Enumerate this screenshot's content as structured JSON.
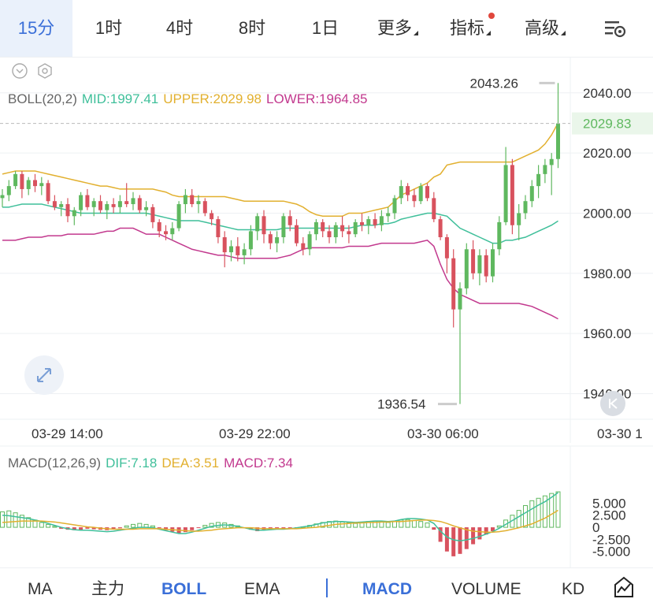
{
  "toolbar": {
    "timeframes": [
      {
        "label": "15分",
        "active": true
      },
      {
        "label": "1时",
        "active": false
      },
      {
        "label": "4时",
        "active": false
      },
      {
        "label": "8时",
        "active": false
      },
      {
        "label": "1日",
        "active": false
      },
      {
        "label": "更多",
        "active": false,
        "dropdown": true
      },
      {
        "label": "指标",
        "active": false,
        "dropdown": true,
        "badge_dot": true
      },
      {
        "label": "高级",
        "active": false,
        "dropdown": true
      }
    ],
    "settings_icon": "chart-settings-icon"
  },
  "overlay_icons": [
    "chevron-down-circle-icon",
    "hexagon-settings-icon"
  ],
  "boll_legend": {
    "label": "BOLL(20,2)",
    "mid": "MID:1997.41",
    "upper": "UPPER:2029.98",
    "lower": "LOWER:1964.85"
  },
  "macd_legend": {
    "label": "MACD(12,26,9)",
    "dif": "DIF:7.18",
    "dea": "DEA:3.51",
    "macd": "MACD:7.34"
  },
  "colors": {
    "up": "#5fb85f",
    "down": "#d8525e",
    "mid": "#3fbf9a",
    "upper": "#e2b02f",
    "lower": "#c2398e",
    "accent": "#3a6fd8",
    "grid": "#eef0f3",
    "label": "#333333"
  },
  "chart_data": [
    {
      "type": "candlestick",
      "indicator": "BOLL(20,2)",
      "price_axis_ticks": [
        "2040.00",
        "2020.00",
        "2000.00",
        "1980.00",
        "1960.00",
        "1940.00"
      ],
      "ylim": [
        1932,
        2052
      ],
      "last_price": "2029.83",
      "marked_high": "2043.26",
      "marked_low": "1936.54",
      "time_labels": [
        "03-29 14:00",
        "03-29 22:00",
        "03-30 06:00",
        "03-30 1"
      ],
      "candles": [
        [
          2005,
          2008,
          2002,
          2006
        ],
        [
          2006,
          2011,
          2004,
          2009
        ],
        [
          2009,
          2014,
          2008,
          2013
        ],
        [
          2013,
          2014,
          2005,
          2008
        ],
        [
          2008,
          2012,
          2006,
          2011
        ],
        [
          2011,
          2013,
          2007,
          2009
        ],
        [
          2009,
          2012,
          2006,
          2010
        ],
        [
          2010,
          2011,
          2003,
          2004
        ],
        [
          2004,
          2006,
          2001,
          2002
        ],
        [
          2002,
          2004,
          1999,
          2003
        ],
        [
          2003,
          2005,
          1997,
          1999
        ],
        [
          1999,
          2002,
          1996,
          2001
        ],
        [
          2001,
          2007,
          1999,
          2006
        ],
        [
          2006,
          2008,
          2001,
          2002
        ],
        [
          2002,
          2005,
          1999,
          2004
        ],
        [
          2004,
          2006,
          2000,
          2001
        ],
        [
          2001,
          2004,
          1998,
          2003
        ],
        [
          2003,
          2005,
          2000,
          2002
        ],
        [
          2002,
          2006,
          2000,
          2004
        ],
        [
          2004,
          2010,
          2002,
          2003
        ],
        [
          2003,
          2007,
          2001,
          2005
        ],
        [
          2005,
          2006,
          2000,
          2001
        ],
        [
          2001,
          2004,
          1999,
          2002
        ],
        [
          2002,
          2003,
          1995,
          1997
        ],
        [
          1997,
          1998,
          1992,
          1994
        ],
        [
          1994,
          1996,
          1991,
          1993
        ],
        [
          1993,
          1997,
          1991,
          1995
        ],
        [
          1995,
          2004,
          1994,
          2003
        ],
        [
          2003,
          2008,
          2000,
          2006
        ],
        [
          2006,
          2008,
          2002,
          2003
        ],
        [
          2003,
          2006,
          2000,
          2004
        ],
        [
          2004,
          2005,
          1999,
          2000
        ],
        [
          2000,
          2001,
          1996,
          1998
        ],
        [
          1998,
          1999,
          1990,
          1992
        ],
        [
          1992,
          1994,
          1982,
          1987
        ],
        [
          1987,
          1991,
          1984,
          1989
        ],
        [
          1989,
          1992,
          1984,
          1986
        ],
        [
          1986,
          1990,
          1983,
          1988
        ],
        [
          1988,
          1996,
          1986,
          1994
        ],
        [
          1994,
          2000,
          1991,
          1999
        ],
        [
          1999,
          2001,
          1990,
          1993
        ],
        [
          1993,
          1994,
          1988,
          1990
        ],
        [
          1990,
          1994,
          1987,
          1992
        ],
        [
          1992,
          2000,
          1990,
          1999
        ],
        [
          1999,
          2001,
          1994,
          1996
        ],
        [
          1996,
          1998,
          1989,
          1990
        ],
        [
          1990,
          1992,
          1986,
          1988
        ],
        [
          1988,
          1994,
          1986,
          1993
        ],
        [
          1993,
          1998,
          1991,
          1997
        ],
        [
          1997,
          1998,
          1992,
          1994
        ],
        [
          1994,
          1996,
          1990,
          1992
        ],
        [
          1992,
          1997,
          1990,
          1996
        ],
        [
          1996,
          1999,
          1992,
          1994
        ],
        [
          1994,
          1996,
          1990,
          1993
        ],
        [
          1993,
          1998,
          1992,
          1997
        ],
        [
          1997,
          2000,
          1994,
          1996
        ],
        [
          1996,
          1999,
          1993,
          1998
        ],
        [
          1998,
          2000,
          1995,
          1996
        ],
        [
          1996,
          2001,
          1994,
          1999
        ],
        [
          1999,
          2002,
          1997,
          2000
        ],
        [
          2000,
          2006,
          1998,
          2005
        ],
        [
          2005,
          2011,
          2003,
          2009
        ],
        [
          2009,
          2010,
          2004,
          2006
        ],
        [
          2006,
          2008,
          2002,
          2004
        ],
        [
          2004,
          2010,
          2003,
          2009
        ],
        [
          2009,
          2010,
          2004,
          2005
        ],
        [
          2005,
          2007,
          1997,
          1998
        ],
        [
          1998,
          1999,
          1991,
          1992
        ],
        [
          1992,
          1993,
          1980,
          1985
        ],
        [
          1985,
          1988,
          1962,
          1968
        ],
        [
          1968,
          1977,
          1936.54,
          1975
        ],
        [
          1975,
          1990,
          1973,
          1988
        ],
        [
          1988,
          1991,
          1978,
          1980
        ],
        [
          1980,
          1988,
          1976,
          1986
        ],
        [
          1986,
          1988,
          1977,
          1979
        ],
        [
          1979,
          1990,
          1977,
          1988
        ],
        [
          1988,
          1999,
          1986,
          1997
        ],
        [
          1997,
          2022,
          1996,
          2016
        ],
        [
          2016,
          2018,
          1993,
          1996
        ],
        [
          1996,
          2003,
          1991,
          2000
        ],
        [
          2000,
          2006,
          1998,
          2004
        ],
        [
          2004,
          2011,
          2002,
          2009
        ],
        [
          2009,
          2016,
          2005,
          2013
        ],
        [
          2013,
          2018,
          2010,
          2016
        ],
        [
          2016,
          2020,
          2006,
          2018
        ],
        [
          2018,
          2043.26,
          2015,
          2029.83
        ]
      ],
      "boll_mid": [
        2002,
        2002,
        2002.5,
        2003,
        2003,
        2003,
        2003,
        2002.5,
        2002,
        2001.5,
        2001,
        2000.5,
        2000,
        2000,
        2000,
        2000,
        2000,
        2000,
        2000,
        2000,
        2000,
        2000,
        2000,
        1999.5,
        1999,
        1998.5,
        1998,
        1997.5,
        1997.5,
        1997.5,
        1997.5,
        1997,
        1996.5,
        1996,
        1995.5,
        1995,
        1994.5,
        1994.5,
        1994.5,
        1994.5,
        1994.5,
        1994.5,
        1994.5,
        1995,
        1995,
        1995,
        1995,
        1995,
        1995,
        1995,
        1995,
        1995,
        1995,
        1995,
        1995.5,
        1996,
        1996,
        1996,
        1996.5,
        1996.5,
        1997,
        1998,
        1998.5,
        1999,
        1999.5,
        2000,
        2000,
        1999.5,
        1999,
        1997,
        1995,
        1994,
        1993,
        1992,
        1991,
        1990,
        1990,
        1991,
        1991,
        1991.5,
        1992,
        1993,
        1994,
        1995,
        1996,
        1997.41
      ],
      "boll_upper": [
        2013,
        2013.5,
        2014,
        2014,
        2014,
        2014,
        2013.5,
        2013,
        2012.5,
        2012,
        2011.5,
        2011,
        2010.5,
        2010,
        2009.5,
        2009,
        2009,
        2008.5,
        2008,
        2008,
        2008,
        2008,
        2008,
        2008,
        2007.5,
        2007,
        2006,
        2005.5,
        2005.5,
        2005.5,
        2005.5,
        2005.5,
        2005.5,
        2005.5,
        2005.5,
        2005,
        2004.5,
        2004,
        2004,
        2004,
        2004,
        2004,
        2004,
        2004,
        2003.5,
        2003,
        2002,
        2000.5,
        1999.5,
        1999,
        1999,
        1999,
        1999,
        2000,
        2000,
        2000,
        2000.5,
        2001,
        2001.5,
        2002,
        2004,
        2006,
        2007,
        2008,
        2009,
        2010,
        2012,
        2013,
        2016,
        2016.5,
        2017,
        2017,
        2017,
        2017,
        2017,
        2017,
        2017,
        2017,
        2017,
        2018,
        2019,
        2020,
        2021,
        2023,
        2026,
        2029.98
      ],
      "boll_lower": [
        1991,
        1991,
        1991,
        1991.5,
        1992,
        1992,
        1992,
        1992.5,
        1992.5,
        1992.5,
        1993,
        1993,
        1993,
        1993,
        1993,
        1993.5,
        1994,
        1994,
        1995,
        1995,
        1995,
        1994,
        1993,
        1993,
        1993,
        1992,
        1991,
        1990,
        1989,
        1988,
        1987.5,
        1987,
        1986.5,
        1986,
        1986,
        1985.5,
        1985,
        1985,
        1985,
        1985,
        1985,
        1985,
        1985,
        1985.5,
        1986,
        1987,
        1988,
        1988.5,
        1988.5,
        1988.5,
        1988.5,
        1988.5,
        1988.5,
        1989,
        1989,
        1989,
        1989,
        1989.5,
        1990,
        1990,
        1990,
        1990,
        1990,
        1990,
        1990.5,
        1991,
        1989,
        1983,
        1978,
        1975,
        1973,
        1972,
        1971,
        1970,
        1970,
        1970,
        1970,
        1970,
        1970,
        1970,
        1969.5,
        1969,
        1968,
        1967,
        1966,
        1964.85
      ]
    },
    {
      "type": "macd",
      "indicator": "MACD(12,26,9)",
      "axis_ticks": [
        "5.000",
        "2.500",
        "0",
        "-2.500",
        "-5.000"
      ],
      "ylim": [
        -7,
        8
      ],
      "histogram": [
        3.2,
        3.4,
        3.0,
        2.5,
        2.0,
        1.5,
        1.0,
        0.6,
        0.2,
        -0.3,
        -0.5,
        -0.6,
        -0.5,
        -0.3,
        -0.4,
        -0.5,
        -0.6,
        -0.4,
        -0.2,
        0.3,
        0.6,
        0.8,
        0.6,
        0.3,
        -0.2,
        -0.6,
        -0.9,
        -1.2,
        -1.0,
        -0.6,
        -0.1,
        0.4,
        0.8,
        1.0,
        0.9,
        0.6,
        0.3,
        -0.1,
        -0.5,
        -0.8,
        -0.6,
        -0.3,
        -0.2,
        -0.4,
        -0.3,
        -0.1,
        0.1,
        0.4,
        0.7,
        1.0,
        1.2,
        1.3,
        1.1,
        0.9,
        0.8,
        1.0,
        1.2,
        1.3,
        1.2,
        1.0,
        1.2,
        1.5,
        1.6,
        1.4,
        1.2,
        0.9,
        -0.5,
        -3.0,
        -5.0,
        -6.0,
        -5.5,
        -4.5,
        -3.5,
        -2.5,
        -1.5,
        -0.8,
        0.3,
        1.5,
        2.5,
        3.5,
        4.5,
        5.5,
        6.0,
        6.5,
        7.0,
        7.34
      ],
      "dif": [
        2.5,
        2.4,
        2.2,
        2.0,
        1.8,
        1.5,
        1.2,
        0.8,
        0.4,
        0.0,
        -0.3,
        -0.5,
        -0.6,
        -0.6,
        -0.7,
        -0.8,
        -0.9,
        -0.8,
        -0.6,
        -0.4,
        -0.2,
        0.0,
        0.0,
        -0.1,
        -0.4,
        -0.7,
        -1.0,
        -1.3,
        -1.3,
        -1.0,
        -0.6,
        -0.2,
        0.2,
        0.4,
        0.5,
        0.4,
        0.2,
        -0.1,
        -0.4,
        -0.6,
        -0.6,
        -0.5,
        -0.4,
        -0.4,
        -0.3,
        -0.1,
        0.1,
        0.3,
        0.6,
        0.9,
        1.1,
        1.2,
        1.2,
        1.1,
        1.0,
        1.1,
        1.2,
        1.3,
        1.3,
        1.2,
        1.3,
        1.6,
        1.8,
        1.8,
        1.7,
        1.5,
        0.8,
        -0.8,
        -2.0,
        -2.6,
        -2.8,
        -2.6,
        -2.3,
        -1.9,
        -1.4,
        -0.9,
        -0.2,
        0.6,
        1.4,
        2.2,
        3.0,
        3.8,
        4.6,
        5.3,
        6.2,
        7.18
      ],
      "dea": [
        1.0,
        1.1,
        1.2,
        1.3,
        1.3,
        1.3,
        1.3,
        1.2,
        1.1,
        0.9,
        0.7,
        0.5,
        0.3,
        0.1,
        0.0,
        -0.2,
        -0.3,
        -0.4,
        -0.4,
        -0.4,
        -0.4,
        -0.3,
        -0.3,
        -0.3,
        -0.3,
        -0.4,
        -0.5,
        -0.6,
        -0.7,
        -0.8,
        -0.8,
        -0.7,
        -0.6,
        -0.4,
        -0.3,
        -0.2,
        -0.1,
        -0.1,
        -0.1,
        -0.2,
        -0.3,
        -0.3,
        -0.3,
        -0.3,
        -0.3,
        -0.3,
        -0.2,
        -0.1,
        0.0,
        0.2,
        0.4,
        0.6,
        0.7,
        0.8,
        0.9,
        0.9,
        1.0,
        1.0,
        1.1,
        1.1,
        1.2,
        1.2,
        1.3,
        1.4,
        1.5,
        1.5,
        1.4,
        1.2,
        0.8,
        0.3,
        -0.1,
        -0.5,
        -0.8,
        -0.9,
        -1.0,
        -1.0,
        -0.9,
        -0.7,
        -0.4,
        -0.1,
        0.3,
        0.7,
        1.3,
        1.9,
        2.7,
        3.51
      ]
    }
  ],
  "bottom_tabs": {
    "main": [
      {
        "label": "MA",
        "active": false
      },
      {
        "label": "主力",
        "active": false
      },
      {
        "label": "BOLL",
        "active": true
      },
      {
        "label": "EMA",
        "active": false
      }
    ],
    "sub": [
      {
        "label": "MACD",
        "active": true
      },
      {
        "label": "VOLUME",
        "active": false
      },
      {
        "label": "KD",
        "active": false
      }
    ],
    "tool_icon": "drawing-tool-icon"
  }
}
